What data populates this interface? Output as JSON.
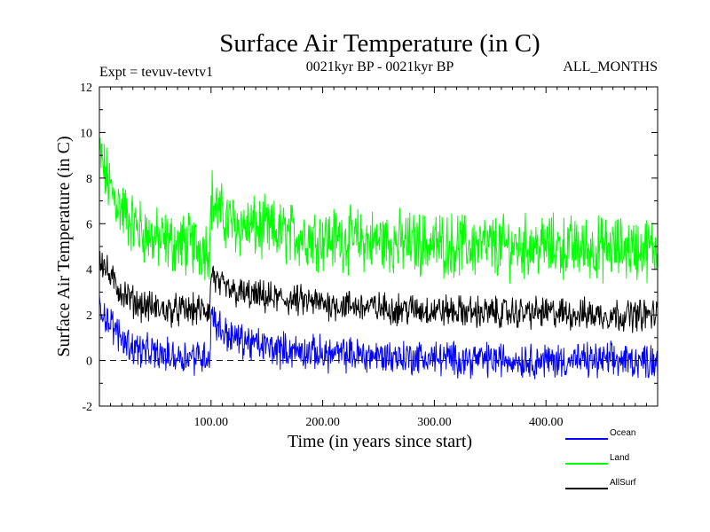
{
  "chart_data": {
    "type": "line",
    "title": "Surface Air Temperature (in C)",
    "subtitle": "0021kyr BP - 0021kyr BP",
    "experiment": "Expt = tevuv-tevtv1",
    "months": "ALL_MONTHS",
    "xlabel": "Time (in years since start)",
    "ylabel": "Surface Air Temperature (in C)",
    "xlim": [
      0,
      500
    ],
    "ylim": [
      -2,
      12
    ],
    "x_ticks": [
      {
        "value": 100,
        "label": "100.00"
      },
      {
        "value": 200,
        "label": "200.00"
      },
      {
        "value": 300,
        "label": "300.00"
      },
      {
        "value": 400,
        "label": "400.00"
      }
    ],
    "y_ticks": [
      {
        "value": -2,
        "label": "-2"
      },
      {
        "value": 0,
        "label": "0"
      },
      {
        "value": 2,
        "label": "2"
      },
      {
        "value": 4,
        "label": "4"
      },
      {
        "value": 6,
        "label": "6"
      },
      {
        "value": 8,
        "label": "8"
      },
      {
        "value": 10,
        "label": "10"
      },
      {
        "value": 12,
        "label": "12"
      }
    ],
    "zero_line": 0,
    "series": [
      {
        "name": "Land",
        "color": "#00ff00",
        "noise_amplitude": 1.1,
        "x": [
          0,
          5,
          10,
          20,
          30,
          40,
          50,
          60,
          70,
          80,
          90,
          99,
          100,
          101,
          105,
          110,
          120,
          140,
          160,
          180,
          200,
          250,
          300,
          350,
          400,
          450,
          500
        ],
        "values": [
          9.0,
          8.2,
          7.5,
          6.6,
          6.0,
          5.6,
          5.3,
          5.2,
          5.1,
          5.1,
          5.0,
          5.0,
          6.9,
          7.1,
          6.6,
          6.3,
          6.0,
          5.8,
          5.6,
          5.5,
          5.4,
          5.2,
          5.1,
          5.0,
          5.0,
          4.9,
          4.9
        ]
      },
      {
        "name": "AllSurf",
        "color": "#000000",
        "noise_amplitude": 0.55,
        "x": [
          0,
          5,
          10,
          20,
          30,
          40,
          50,
          60,
          70,
          80,
          90,
          99,
          100,
          101,
          105,
          110,
          120,
          140,
          160,
          180,
          200,
          250,
          300,
          350,
          400,
          450,
          500
        ],
        "values": [
          4.6,
          4.1,
          3.6,
          3.0,
          2.6,
          2.4,
          2.3,
          2.2,
          2.2,
          2.2,
          2.2,
          2.2,
          3.7,
          3.9,
          3.4,
          3.2,
          3.0,
          2.8,
          2.7,
          2.6,
          2.5,
          2.3,
          2.2,
          2.1,
          2.1,
          2.0,
          2.0
        ]
      },
      {
        "name": "Ocean",
        "color": "#0000ff",
        "noise_amplitude": 0.6,
        "x": [
          0,
          5,
          10,
          20,
          30,
          40,
          50,
          60,
          70,
          80,
          90,
          99,
          100,
          101,
          105,
          110,
          120,
          140,
          160,
          180,
          200,
          250,
          300,
          350,
          400,
          450,
          500
        ],
        "values": [
          2.5,
          2.0,
          1.6,
          1.0,
          0.6,
          0.4,
          0.3,
          0.2,
          0.2,
          0.2,
          0.2,
          0.2,
          1.9,
          2.1,
          1.6,
          1.3,
          1.0,
          0.7,
          0.5,
          0.4,
          0.3,
          0.2,
          0.1,
          0.05,
          0.0,
          0.0,
          0.0
        ]
      }
    ],
    "legend": [
      {
        "name": "Ocean",
        "color": "#0000ff"
      },
      {
        "name": "Land",
        "color": "#00ff00"
      },
      {
        "name": "AllSurf",
        "color": "#000000"
      }
    ]
  }
}
